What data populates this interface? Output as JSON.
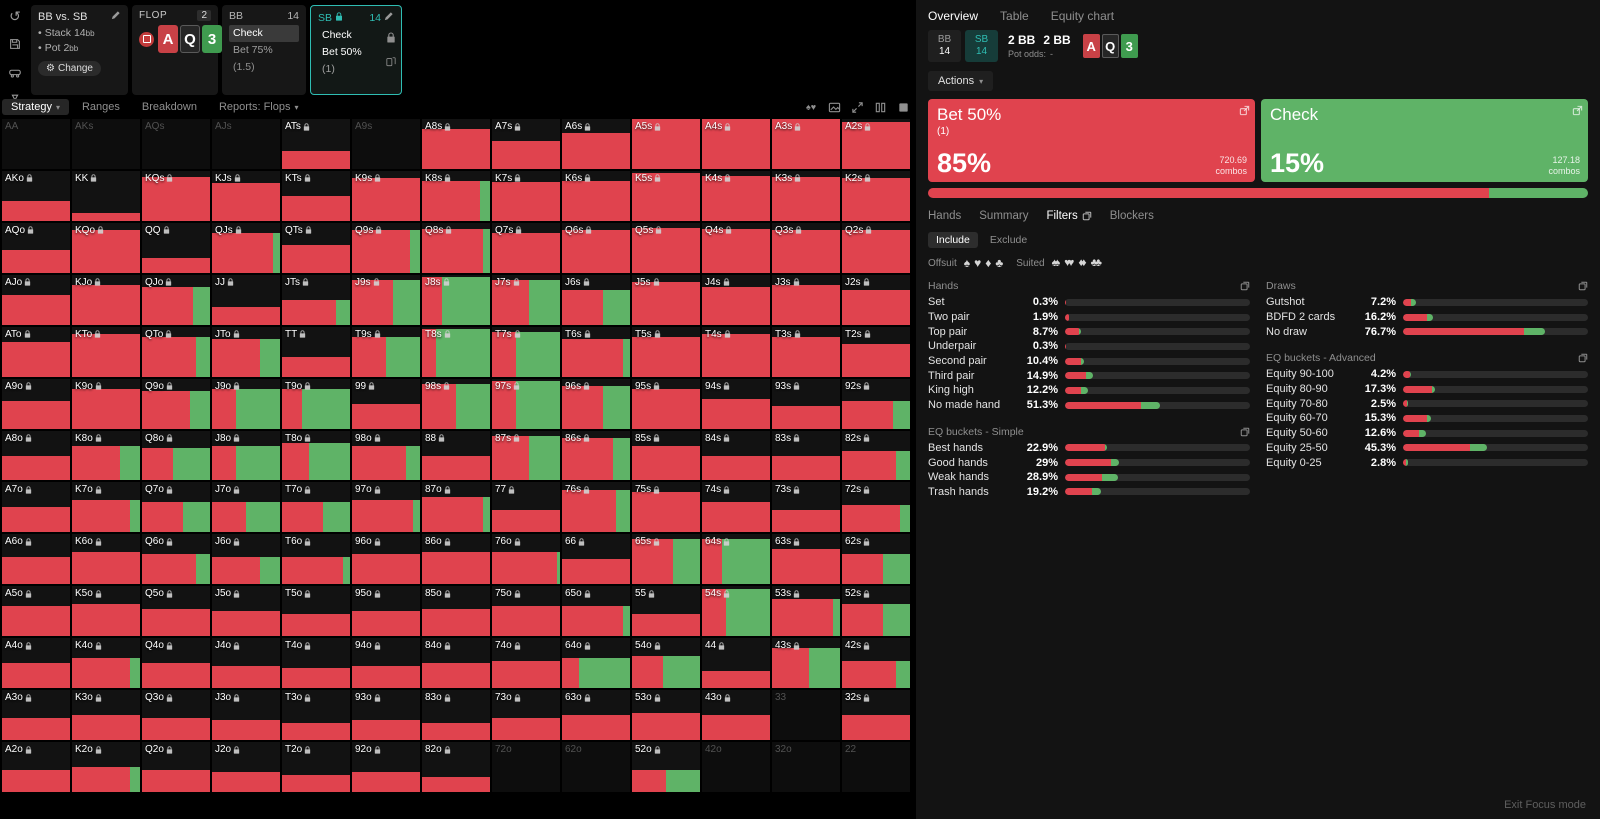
{
  "colors": {
    "bet": "#e0434e",
    "check": "#5fb367",
    "accent": "#2fbdb3",
    "hearts": "#c84146",
    "spades": "#262626",
    "clubs": "#3f9b4f",
    "diamonds": "#3b6fd1"
  },
  "rail": {
    "icons": [
      "undo-icon",
      "save-icon",
      "camera-icon",
      "hourglass-icon"
    ]
  },
  "hud": {
    "match": {
      "title": "BB vs. SB",
      "items": [
        {
          "label": "Stack",
          "value": "14",
          "unit": "bb"
        },
        {
          "label": "Pot",
          "value": "2",
          "unit": "bb"
        }
      ],
      "change_label": "Change"
    },
    "flop": {
      "title": "FLOP",
      "badge": "2"
    },
    "board": [
      {
        "rank": "A",
        "suit": "hearts"
      },
      {
        "rank": "Q",
        "suit": "spades"
      },
      {
        "rank": "3",
        "suit": "clubs"
      }
    ],
    "bb": {
      "title": "BB",
      "stack": "14",
      "actions": [
        {
          "label": "Check",
          "size": "",
          "selected": true
        },
        {
          "label": "Bet 75%",
          "size": "(1.5)",
          "selected": false
        }
      ]
    },
    "sb": {
      "title": "SB",
      "stack": "14",
      "actions": [
        {
          "label": "Check",
          "size": ""
        },
        {
          "label": "Bet 50%",
          "size": "(1)"
        }
      ]
    }
  },
  "toolbar": {
    "tabs": [
      {
        "label": "Strategy",
        "active": true,
        "caret": true
      },
      {
        "label": "Ranges"
      },
      {
        "label": "Breakdown"
      },
      {
        "label": "Reports: Flops",
        "caret": true
      }
    ],
    "icons": [
      "suits-toggle-icon",
      "image-toggle-icon",
      "expand-icon",
      "split-view-icon",
      "grid-view-icon"
    ]
  },
  "matrix": {
    "rows": [
      [
        [
          "AA",
          0,
          0,
          0
        ],
        [
          "AKs",
          0,
          0,
          0
        ],
        [
          "AQs",
          0,
          0,
          0
        ],
        [
          "AJs",
          0,
          0,
          0
        ],
        [
          "ATs",
          1,
          35,
          100
        ],
        [
          "A9s",
          0,
          0,
          0
        ],
        [
          "A8s",
          1,
          80,
          100
        ],
        [
          "A7s",
          1,
          55,
          100
        ],
        [
          "A6s",
          1,
          72,
          100
        ],
        [
          "A5s",
          1,
          100,
          100
        ],
        [
          "A4s",
          1,
          100,
          100
        ],
        [
          "A3s",
          1,
          100,
          100
        ],
        [
          "A2s",
          1,
          95,
          100
        ]
      ],
      [
        [
          "AKo",
          1,
          40,
          100
        ],
        [
          "KK",
          1,
          15,
          100
        ],
        [
          "KQs",
          1,
          88,
          100
        ],
        [
          "KJs",
          1,
          75,
          100
        ],
        [
          "KTs",
          1,
          50,
          100
        ],
        [
          "K9s",
          1,
          85,
          100
        ],
        [
          "K8s",
          1,
          80,
          85
        ],
        [
          "K7s",
          1,
          78,
          100
        ],
        [
          "K6s",
          1,
          80,
          100
        ],
        [
          "K5s",
          1,
          95,
          100
        ],
        [
          "K4s",
          1,
          90,
          100
        ],
        [
          "K3s",
          1,
          88,
          100
        ],
        [
          "K2s",
          1,
          85,
          100
        ]
      ],
      [
        [
          "AQo",
          1,
          45,
          100
        ],
        [
          "KQo",
          1,
          85,
          100
        ],
        [
          "QQ",
          1,
          30,
          100
        ],
        [
          "QJs",
          1,
          80,
          90
        ],
        [
          "QTs",
          1,
          55,
          100
        ],
        [
          "Q9s",
          1,
          85,
          85
        ],
        [
          "Q8s",
          1,
          88,
          90
        ],
        [
          "Q7s",
          1,
          80,
          100
        ],
        [
          "Q6s",
          1,
          85,
          100
        ],
        [
          "Q5s",
          1,
          90,
          100
        ],
        [
          "Q4s",
          1,
          88,
          100
        ],
        [
          "Q3s",
          1,
          85,
          100
        ],
        [
          "Q2s",
          1,
          85,
          100
        ]
      ],
      [
        [
          "AJo",
          1,
          60,
          100
        ],
        [
          "KJo",
          1,
          80,
          100
        ],
        [
          "QJo",
          1,
          75,
          75
        ],
        [
          "JJ",
          1,
          35,
          100
        ],
        [
          "JTs",
          1,
          50,
          80
        ],
        [
          "J9s",
          1,
          90,
          60
        ],
        [
          "J8s",
          1,
          95,
          30
        ],
        [
          "J7s",
          1,
          90,
          55
        ],
        [
          "J6s",
          1,
          70,
          60
        ],
        [
          "J5s",
          1,
          85,
          100
        ],
        [
          "J4s",
          1,
          75,
          100
        ],
        [
          "J3s",
          1,
          80,
          100
        ],
        [
          "J2s",
          1,
          70,
          100
        ]
      ],
      [
        [
          "ATo",
          1,
          70,
          100
        ],
        [
          "KTo",
          1,
          85,
          100
        ],
        [
          "QTo",
          1,
          80,
          80
        ],
        [
          "JTo",
          1,
          75,
          70
        ],
        [
          "TT",
          1,
          40,
          100
        ],
        [
          "T9s",
          1,
          80,
          50
        ],
        [
          "T8s",
          1,
          95,
          20
        ],
        [
          "T7s",
          1,
          90,
          35
        ],
        [
          "T6s",
          1,
          75,
          90
        ],
        [
          "T5s",
          1,
          80,
          100
        ],
        [
          "T4s",
          1,
          85,
          100
        ],
        [
          "T3s",
          1,
          80,
          100
        ],
        [
          "T2s",
          1,
          65,
          100
        ]
      ],
      [
        [
          "A9o",
          1,
          55,
          100
        ],
        [
          "K9o",
          1,
          80,
          100
        ],
        [
          "Q9o",
          1,
          75,
          70
        ],
        [
          "J9o",
          1,
          80,
          35
        ],
        [
          "T9o",
          1,
          80,
          30
        ],
        [
          "99",
          1,
          50,
          100
        ],
        [
          "98s",
          1,
          90,
          50
        ],
        [
          "97s",
          1,
          95,
          35
        ],
        [
          "96s",
          1,
          85,
          60
        ],
        [
          "95s",
          1,
          80,
          100
        ],
        [
          "94s",
          1,
          60,
          100
        ],
        [
          "93s",
          1,
          45,
          100
        ],
        [
          "92s",
          1,
          55,
          75
        ]
      ],
      [
        [
          "A8o",
          1,
          50,
          100
        ],
        [
          "K8o",
          1,
          70,
          70
        ],
        [
          "Q8o",
          1,
          65,
          45
        ],
        [
          "J8o",
          1,
          70,
          35
        ],
        [
          "T8o",
          1,
          75,
          40
        ],
        [
          "98o",
          1,
          70,
          80
        ],
        [
          "88",
          1,
          50,
          100
        ],
        [
          "87s",
          1,
          90,
          55
        ],
        [
          "86s",
          1,
          85,
          75
        ],
        [
          "85s",
          1,
          70,
          100
        ],
        [
          "84s",
          1,
          50,
          100
        ],
        [
          "83s",
          1,
          50,
          100
        ],
        [
          "82s",
          1,
          60,
          80
        ]
      ],
      [
        [
          "A7o",
          1,
          50,
          100
        ],
        [
          "K7o",
          1,
          65,
          85
        ],
        [
          "Q7o",
          1,
          60,
          60
        ],
        [
          "J7o",
          1,
          60,
          50
        ],
        [
          "T7o",
          1,
          60,
          60
        ],
        [
          "97o",
          1,
          65,
          90
        ],
        [
          "87o",
          1,
          70,
          90
        ],
        [
          "77",
          1,
          45,
          100
        ],
        [
          "76s",
          1,
          85,
          80
        ],
        [
          "75s",
          1,
          80,
          100
        ],
        [
          "74s",
          1,
          60,
          100
        ],
        [
          "73s",
          1,
          45,
          100
        ],
        [
          "72s",
          1,
          55,
          85
        ]
      ],
      [
        [
          "A6o",
          1,
          55,
          100
        ],
        [
          "K6o",
          1,
          65,
          100
        ],
        [
          "Q6o",
          1,
          60,
          80
        ],
        [
          "J6o",
          1,
          55,
          70
        ],
        [
          "T6o",
          1,
          55,
          90
        ],
        [
          "96o",
          1,
          60,
          100
        ],
        [
          "86o",
          1,
          65,
          100
        ],
        [
          "76o",
          1,
          65,
          95
        ],
        [
          "66",
          1,
          50,
          100
        ],
        [
          "65s",
          1,
          90,
          60
        ],
        [
          "64s",
          1,
          90,
          30
        ],
        [
          "63s",
          1,
          70,
          100
        ],
        [
          "62s",
          1,
          60,
          60
        ]
      ],
      [
        [
          "A5o",
          1,
          60,
          100
        ],
        [
          "K5o",
          1,
          65,
          100
        ],
        [
          "Q5o",
          1,
          55,
          100
        ],
        [
          "J5o",
          1,
          50,
          100
        ],
        [
          "T5o",
          1,
          45,
          100
        ],
        [
          "95o",
          1,
          50,
          100
        ],
        [
          "85o",
          1,
          55,
          100
        ],
        [
          "75o",
          1,
          60,
          100
        ],
        [
          "65o",
          1,
          60,
          90
        ],
        [
          "55",
          1,
          45,
          100
        ],
        [
          "54s",
          1,
          95,
          35
        ],
        [
          "53s",
          1,
          75,
          90
        ],
        [
          "52s",
          1,
          65,
          60
        ]
      ],
      [
        [
          "A4o",
          1,
          50,
          100
        ],
        [
          "K4o",
          1,
          60,
          85
        ],
        [
          "Q4o",
          1,
          50,
          100
        ],
        [
          "J4o",
          1,
          45,
          100
        ],
        [
          "T4o",
          1,
          40,
          100
        ],
        [
          "94o",
          1,
          45,
          100
        ],
        [
          "84o",
          1,
          50,
          100
        ],
        [
          "74o",
          1,
          55,
          100
        ],
        [
          "64o",
          1,
          60,
          25
        ],
        [
          "54o",
          1,
          65,
          45
        ],
        [
          "44",
          1,
          35,
          100
        ],
        [
          "43s",
          1,
          80,
          55
        ],
        [
          "42s",
          1,
          55,
          80
        ]
      ],
      [
        [
          "A3o",
          1,
          45,
          100
        ],
        [
          "K3o",
          1,
          50,
          100
        ],
        [
          "Q3o",
          1,
          45,
          100
        ],
        [
          "J3o",
          1,
          40,
          100
        ],
        [
          "T3o",
          1,
          35,
          100
        ],
        [
          "93o",
          1,
          40,
          100
        ],
        [
          "83o",
          1,
          35,
          100
        ],
        [
          "73o",
          1,
          45,
          100
        ],
        [
          "63o",
          1,
          50,
          100
        ],
        [
          "53o",
          1,
          55,
          100
        ],
        [
          "43o",
          1,
          50,
          100
        ],
        [
          "33",
          0,
          0,
          0
        ],
        [
          "32s",
          1,
          50,
          100
        ]
      ],
      [
        [
          "A2o",
          1,
          45,
          100
        ],
        [
          "K2o",
          1,
          50,
          85
        ],
        [
          "Q2o",
          1,
          45,
          100
        ],
        [
          "J2o",
          1,
          40,
          100
        ],
        [
          "T2o",
          1,
          35,
          100
        ],
        [
          "92o",
          1,
          40,
          100
        ],
        [
          "82o",
          1,
          30,
          100
        ],
        [
          "72o",
          0,
          0,
          0
        ],
        [
          "62o",
          0,
          0,
          0
        ],
        [
          "52o",
          1,
          45,
          50
        ],
        [
          "42o",
          0,
          0,
          0
        ],
        [
          "32o",
          0,
          0,
          0
        ],
        [
          "22",
          0,
          0,
          0
        ]
      ]
    ]
  },
  "overview": {
    "tabs": [
      {
        "label": "Overview",
        "active": true
      },
      {
        "label": "Table"
      },
      {
        "label": "Equity chart"
      }
    ],
    "positions": [
      {
        "label": "BB",
        "stack": "14",
        "active": false
      },
      {
        "label": "SB",
        "stack": "14",
        "active": true
      }
    ],
    "bets": [
      "2 BB",
      "2 BB"
    ],
    "pot_odds_label": "Pot odds:",
    "pot_odds_value": "-",
    "actions_label": "Actions",
    "action_boxes": [
      {
        "title": "Bet 50%",
        "sub": "(1)",
        "pct": "85%",
        "combos": "720.69",
        "combos_label": "combos",
        "color": "red"
      },
      {
        "title": "Check",
        "sub": "",
        "pct": "15%",
        "combos": "127.18",
        "combos_label": "combos",
        "color": "green"
      }
    ],
    "strategy_bar": {
      "red": 85,
      "green": 15
    },
    "sub_tabs": [
      {
        "label": "Hands"
      },
      {
        "label": "Summary"
      },
      {
        "label": "Filters",
        "active": true,
        "copy_icon": true
      },
      {
        "label": "Blockers"
      }
    ],
    "include_tabs": [
      {
        "label": "Include",
        "active": true
      },
      {
        "label": "Exclude"
      }
    ],
    "suit_filter": {
      "offsuit_label": "Offsuit",
      "suited_label": "Suited",
      "suits": [
        {
          "name": "spade",
          "glyph": "♠"
        },
        {
          "name": "heart",
          "glyph": "♥"
        },
        {
          "name": "diamond",
          "glyph": "♦"
        },
        {
          "name": "club",
          "glyph": "♣"
        }
      ]
    },
    "exit_label": "Exit Focus mode"
  },
  "filters": {
    "sections": [
      {
        "title": "Hands",
        "column": "left",
        "rows": [
          [
            "Set",
            "0.3%",
            0.3,
            100
          ],
          [
            "Two pair",
            "1.9%",
            1.9,
            100
          ],
          [
            "Top pair",
            "8.7%",
            8.7,
            90
          ],
          [
            "Underpair",
            "0.3%",
            0.3,
            100
          ],
          [
            "Second pair",
            "10.4%",
            10.4,
            85
          ],
          [
            "Third pair",
            "14.9%",
            14.9,
            75
          ],
          [
            "King high",
            "12.2%",
            12.2,
            70
          ],
          [
            "No made hand",
            "51.3%",
            51.3,
            80
          ]
        ]
      },
      {
        "title": "EQ buckets - Simple",
        "column": "left",
        "rows": [
          [
            "Best hands",
            "22.9%",
            22.9,
            95
          ],
          [
            "Good hands",
            "29%",
            29,
            85
          ],
          [
            "Weak hands",
            "28.9%",
            28.9,
            70
          ],
          [
            "Trash hands",
            "19.2%",
            19.2,
            75
          ]
        ]
      },
      {
        "title": "Draws",
        "column": "right",
        "rows": [
          [
            "Gutshot",
            "7.2%",
            7.2,
            60
          ],
          [
            "BDFD 2 cards",
            "16.2%",
            16.2,
            80
          ],
          [
            "No draw",
            "76.7%",
            76.7,
            85
          ]
        ]
      },
      {
        "title": "EQ buckets - Advanced",
        "column": "right",
        "rows": [
          [
            "Equity 90-100",
            "4.2%",
            4.2,
            90
          ],
          [
            "Equity 80-90",
            "17.3%",
            17.3,
            90
          ],
          [
            "Equity 70-80",
            "2.5%",
            2.5,
            90
          ],
          [
            "Equity 60-70",
            "15.3%",
            15.3,
            85
          ],
          [
            "Equity 50-60",
            "12.6%",
            12.6,
            70
          ],
          [
            "Equity 25-50",
            "45.3%",
            45.3,
            80
          ],
          [
            "Equity 0-25",
            "2.8%",
            2.8,
            60
          ]
        ]
      }
    ]
  }
}
